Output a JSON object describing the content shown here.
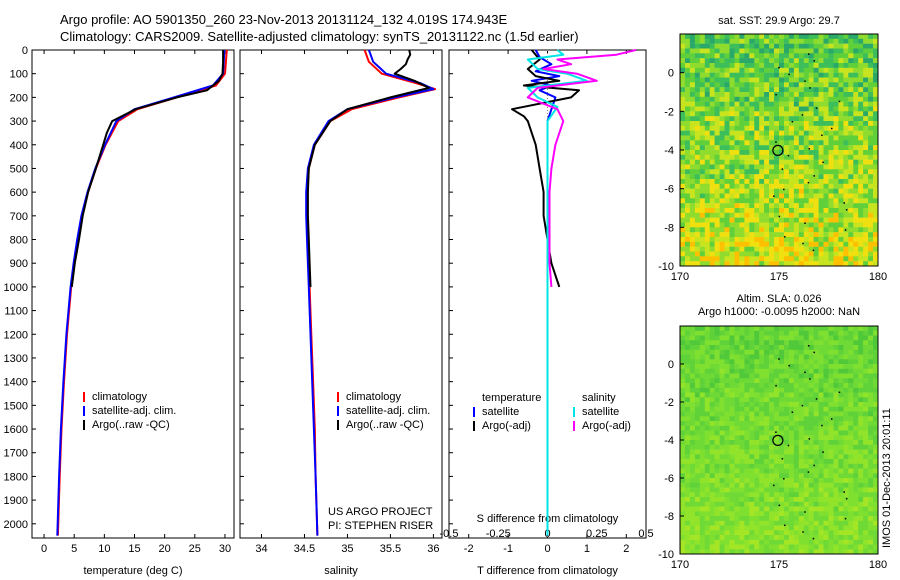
{
  "header": {
    "line1": "Argo profile: AO 5901350_260 23-Nov-2013 20131124_132 4.019S 174.943E",
    "line2": "Climatology: CARS2009. Satellite-adjusted climatology: synTS_20131122.nc (1.5d earlier)"
  },
  "watermark": "IMOS 01-Dec-2013 20:01:11",
  "colors": {
    "clim": "#ff0000",
    "sat": "#0000ff",
    "argo": "#000000",
    "sat_s": "#00e5e5",
    "argo_s": "#ff00ff"
  },
  "chart_data": [
    {
      "id": "temperature",
      "type": "line",
      "xlabel": "temperature (deg C)",
      "ylabel": "depth",
      "xlim": [
        -2,
        31.5
      ],
      "ylim": [
        2060,
        0
      ],
      "xticks": [
        0,
        5,
        10,
        15,
        20,
        25,
        30
      ],
      "yticks": [
        0,
        100,
        200,
        300,
        400,
        500,
        600,
        700,
        800,
        900,
        1000,
        1100,
        1200,
        1300,
        1400,
        1500,
        1600,
        1700,
        1800,
        1900,
        2000
      ],
      "legend": [
        "climatology",
        "satellite-adj. clim.",
        "Argo(..raw -QC)"
      ],
      "series": [
        {
          "name": "climatology",
          "depth": [
            0,
            100,
            150,
            200,
            250,
            300,
            400,
            500,
            600,
            700,
            800,
            900,
            1000,
            1200,
            1400,
            1600,
            1800,
            2050
          ],
          "values": [
            30.3,
            30,
            28.5,
            22,
            15.5,
            12.3,
            10.2,
            8.6,
            7.3,
            6.3,
            5.6,
            5.0,
            4.5,
            3.8,
            3.3,
            2.9,
            2.6,
            2.3
          ]
        },
        {
          "name": "satellite-adj. clim.",
          "depth": [
            0,
            100,
            150,
            200,
            250,
            300,
            400,
            500,
            600,
            700,
            800,
            900,
            1000,
            1200,
            1400,
            1600,
            1800,
            2050
          ],
          "values": [
            29.9,
            29.7,
            28,
            21.5,
            15,
            12,
            10.1,
            8.5,
            7.2,
            6.2,
            5.5,
            4.9,
            4.4,
            3.7,
            3.2,
            2.8,
            2.5,
            2.2
          ]
        },
        {
          "name": "Argo(..raw -QC)",
          "depth": [
            0,
            50,
            100,
            130,
            170,
            200,
            250,
            300,
            350,
            400,
            500,
            600,
            700,
            800,
            900,
            1000
          ],
          "values": [
            29.7,
            29.7,
            29.6,
            29,
            27,
            22,
            15.2,
            11.3,
            10.4,
            9.8,
            8.6,
            7.3,
            6.4,
            5.8,
            5.1,
            4.6
          ]
        }
      ]
    },
    {
      "id": "salinity",
      "type": "line",
      "xlabel": "salinity",
      "xlim": [
        33.75,
        36.1
      ],
      "ylim": [
        2060,
        0
      ],
      "xticks": [
        34,
        34.5,
        35,
        35.5,
        36
      ],
      "legend": [
        "climatology",
        "satellite-adj. clim.",
        "Argo(..raw -QC)"
      ],
      "annotation": [
        "US ARGO PROJECT",
        "PI: STEPHEN RISER"
      ],
      "series": [
        {
          "name": "climatology",
          "depth": [
            0,
            50,
            100,
            140,
            165,
            200,
            250,
            300,
            400,
            500,
            600,
            700,
            800,
            1000,
            1200,
            1400,
            1600,
            1800,
            2050
          ],
          "values": [
            35.2,
            35.25,
            35.4,
            35.8,
            36.02,
            35.6,
            35.05,
            34.8,
            34.62,
            34.55,
            34.53,
            34.53,
            34.54,
            34.56,
            34.58,
            34.6,
            34.62,
            34.63,
            34.65
          ]
        },
        {
          "name": "satellite-adj. clim.",
          "depth": [
            0,
            50,
            100,
            140,
            165,
            200,
            250,
            300,
            400,
            500,
            600,
            700,
            800,
            1000,
            1200,
            1400,
            1600,
            1800,
            2050
          ],
          "values": [
            35.25,
            35.3,
            35.45,
            35.85,
            36.0,
            35.55,
            35.0,
            34.78,
            34.61,
            34.54,
            34.52,
            34.52,
            34.53,
            34.55,
            34.57,
            34.59,
            34.61,
            34.63,
            34.65
          ]
        },
        {
          "name": "Argo(..raw -QC)",
          "depth": [
            0,
            20,
            40,
            60,
            80,
            100,
            130,
            160,
            200,
            250,
            300,
            400,
            500,
            600,
            700,
            800,
            900,
            1000
          ],
          "values": [
            35.72,
            35.73,
            35.7,
            35.68,
            35.62,
            35.55,
            35.78,
            35.95,
            35.5,
            35.0,
            34.8,
            34.62,
            34.55,
            34.54,
            34.54,
            34.55,
            34.56,
            34.57
          ]
        }
      ]
    },
    {
      "id": "difference",
      "type": "line",
      "xlabel": "T difference from climatology",
      "xlim": [
        -2.5,
        2.5
      ],
      "ylim": [
        2060,
        0
      ],
      "xticks": [
        -2,
        -1,
        0,
        1,
        2
      ],
      "top_label": "S difference from climatology",
      "s_ticks": [
        -0.5,
        -0.25,
        0,
        0.25,
        0.5
      ],
      "legend_left_title": "temperature",
      "legend_right_title": "salinity",
      "legend_left": [
        "satellite",
        "Argo(-adj)"
      ],
      "legend_right": [
        "satellite",
        "Argo(-adj)"
      ],
      "series": [
        {
          "name": "T satellite",
          "depth": [
            0,
            30,
            60,
            90,
            110,
            130,
            150,
            170,
            200,
            300,
            400,
            2050
          ],
          "values": [
            -0.3,
            -0.2,
            0.1,
            -0.3,
            0.3,
            -0.4,
            0.1,
            -0.2,
            0.2,
            0.0,
            0.0,
            0.0
          ]
        },
        {
          "name": "T Argo(-adj)",
          "depth": [
            0,
            40,
            80,
            110,
            130,
            150,
            170,
            200,
            250,
            280,
            300,
            400,
            500,
            600,
            700,
            800,
            900,
            1000
          ],
          "values": [
            -0.4,
            -0.2,
            -0.5,
            -0.3,
            0.3,
            -0.6,
            0.8,
            0.6,
            -0.9,
            -0.6,
            -0.5,
            -0.3,
            -0.2,
            -0.1,
            -0.1,
            0.0,
            0.1,
            0.3
          ]
        },
        {
          "name": "S satellite",
          "depth": [
            0,
            20,
            40,
            80,
            100,
            130,
            160,
            200,
            240,
            300,
            400,
            2050
          ],
          "values": [
            0.05,
            0.08,
            -0.1,
            -0.05,
            0.1,
            0.2,
            -0.1,
            -0.05,
            0.05,
            0.0,
            0.0,
            0.0
          ]
        },
        {
          "name": "S Argo(-adj)",
          "depth": [
            0,
            20,
            40,
            60,
            80,
            100,
            130,
            160,
            200,
            250,
            300,
            400,
            500,
            600,
            700,
            800,
            900,
            1000
          ],
          "values": [
            0.45,
            0.35,
            0.05,
            0.12,
            -0.02,
            0.15,
            0.25,
            -0.05,
            -0.1,
            0.05,
            0.08,
            0.04,
            0.02,
            0.01,
            0.01,
            0.01,
            0.01,
            0.02
          ]
        }
      ]
    },
    {
      "id": "sst_map",
      "type": "heatmap",
      "title": "sat. SST: 29.9 Argo: 29.7",
      "xlim": [
        170,
        180
      ],
      "ylim": [
        -10,
        2
      ],
      "xticks": [
        170,
        175,
        180
      ],
      "yticks": [
        0,
        -2,
        -4,
        -6,
        -8,
        -10
      ],
      "marker": {
        "lon": 174.943,
        "lat": -4.019
      }
    },
    {
      "id": "sla_map",
      "type": "heatmap",
      "title_line1": "Altim. SLA: 0.026",
      "title_line2": "Argo h1000: -0.0095 h2000: NaN",
      "xlim": [
        170,
        180
      ],
      "ylim": [
        -10,
        2
      ],
      "xticks": [
        170,
        175,
        180
      ],
      "yticks": [
        0,
        -2,
        -4,
        -6,
        -8,
        -10
      ],
      "marker": {
        "lon": 174.943,
        "lat": -4.019
      }
    }
  ]
}
